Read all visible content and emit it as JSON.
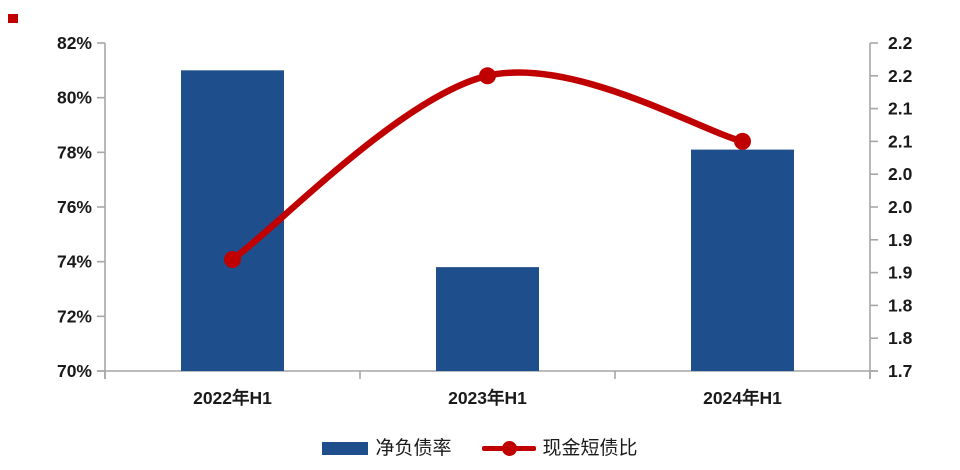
{
  "chart_data": {
    "type": "combo",
    "categories": [
      "2022年H1",
      "2023年H1",
      "2024年H1"
    ],
    "series": [
      {
        "name": "净负债率",
        "type": "bar",
        "axis": "left",
        "values": [
          81.0,
          73.8,
          78.1
        ]
      },
      {
        "name": "现金短债比",
        "type": "line",
        "axis": "right",
        "values": [
          1.87,
          2.15,
          2.05
        ]
      }
    ],
    "title": "",
    "xlabel": "",
    "ylabel": "",
    "left_axis": {
      "min": 70,
      "max": 82,
      "step": 2,
      "format": "percent",
      "tick_labels_top_down": [
        "82%",
        "80%",
        "78%",
        "76%",
        "74%",
        "72%",
        "70%"
      ]
    },
    "right_axis": {
      "min": 1.7,
      "max": 2.2,
      "step": 0.05,
      "tick_labels_top_down": [
        "2.2",
        "2.2",
        "2.1",
        "2.1",
        "2.0",
        "2.0",
        "1.9",
        "1.9",
        "1.8",
        "1.8",
        "1.7"
      ]
    },
    "grid": false,
    "legend_position": "bottom",
    "line_smooth": true
  },
  "legend": {
    "bar_label": "净负债率",
    "line_label": "现金短债比"
  },
  "colors": {
    "bar": "#1F4E8C",
    "line": "#C00000",
    "axis": "#A6A6A6",
    "text": "#1A1A1A",
    "corner_mark": "#C00000"
  }
}
